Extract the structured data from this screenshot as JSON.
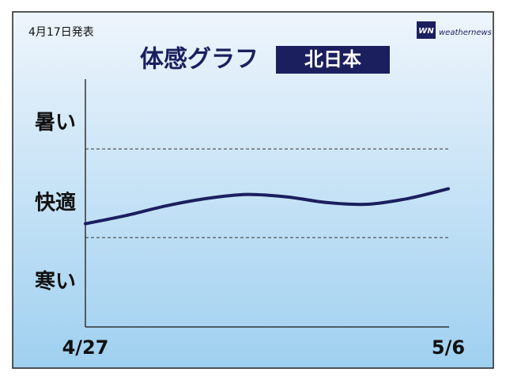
{
  "chart_data": {
    "type": "line",
    "note": "4月17日発表",
    "title": "体感グラフ",
    "region": "北日本",
    "logo_mark": "WN",
    "logo": "weathernews",
    "categories": [
      "4/27",
      null,
      null,
      null,
      null,
      null,
      null,
      null,
      null,
      "5/6"
    ],
    "series": [
      {
        "color": "#1b1f5e",
        "values": [
          1.27,
          1.37,
          1.49,
          1.58,
          1.63,
          1.6,
          1.53,
          1.51,
          1.58,
          1.7
        ]
      }
    ],
    "ylim": [
      0,
      3
    ],
    "yticks": [
      {
        "value": 0.55,
        "label": "寒い"
      },
      {
        "value": 1.52,
        "label": "快適"
      },
      {
        "value": 2.51,
        "label": "暑い"
      }
    ],
    "grid_lines": [
      1.1,
      2.19
    ]
  }
}
